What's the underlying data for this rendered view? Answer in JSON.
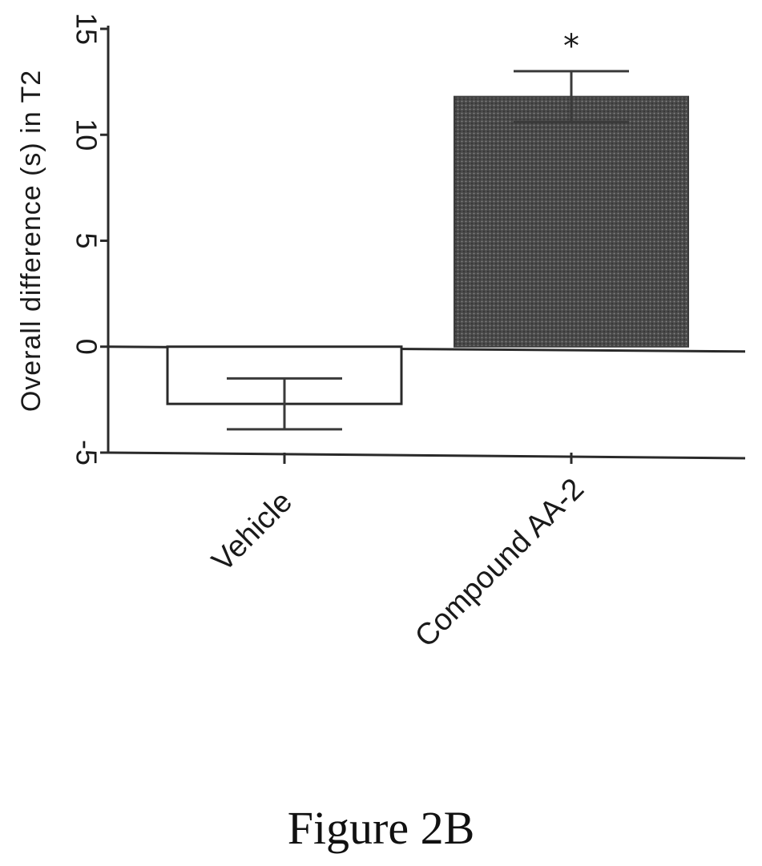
{
  "caption": "Figure 2B",
  "colors": {
    "filled_bar": "#3c3c3c",
    "open_bar_outline": "#2a2a2a",
    "axis": "#2a2a2a"
  },
  "chart_data": {
    "type": "bar",
    "categories": [
      "Vehicle",
      "Compound AA-2"
    ],
    "values": [
      -2.7,
      11.8
    ],
    "error": [
      1.2,
      1.2
    ],
    "bar_styles": [
      "open",
      "filled"
    ],
    "annotations": [
      {
        "category": "Compound AA-2",
        "text": "*"
      }
    ],
    "title": "",
    "xlabel": "",
    "ylabel": "Overall difference (s) in T2",
    "ylim": [
      -5,
      15
    ],
    "yticks": [
      -5,
      0,
      5,
      10,
      15
    ],
    "ytick_labels": [
      "-5",
      "0",
      "5",
      "10",
      "15"
    ],
    "grid": false,
    "legend": "none"
  }
}
